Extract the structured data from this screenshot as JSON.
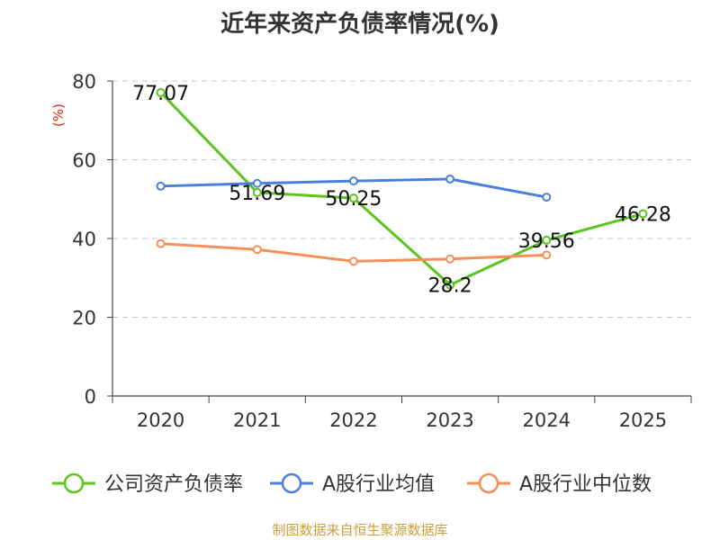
{
  "chart_data": {
    "type": "line",
    "title": "近年来资产负债率情况(%)",
    "ylabel": "(%)",
    "categories": [
      "2020",
      "2021",
      "2022",
      "2023",
      "2024",
      "2025"
    ],
    "ylim": [
      0,
      80
    ],
    "yticks": [
      0,
      20,
      40,
      60,
      80
    ],
    "grid": true,
    "legend_position": "bottom",
    "series": [
      {
        "name": "公司资产负债率",
        "color": "#5cc41f",
        "values": [
          77.07,
          51.69,
          50.25,
          28.2,
          39.56,
          46.28
        ],
        "labels": [
          "77.07",
          "51.69",
          "50.25",
          "28.2",
          "39.56",
          "46.28"
        ]
      },
      {
        "name": "A股行业均值",
        "color": "#4a7fdc",
        "values": [
          53.3,
          54.0,
          54.6,
          55.1,
          50.5,
          null
        ]
      },
      {
        "name": "A股行业中位数",
        "color": "#f48f57",
        "values": [
          38.7,
          37.2,
          34.2,
          34.8,
          35.8,
          null
        ]
      }
    ]
  },
  "source": "制图数据来自恒生聚源数据库"
}
